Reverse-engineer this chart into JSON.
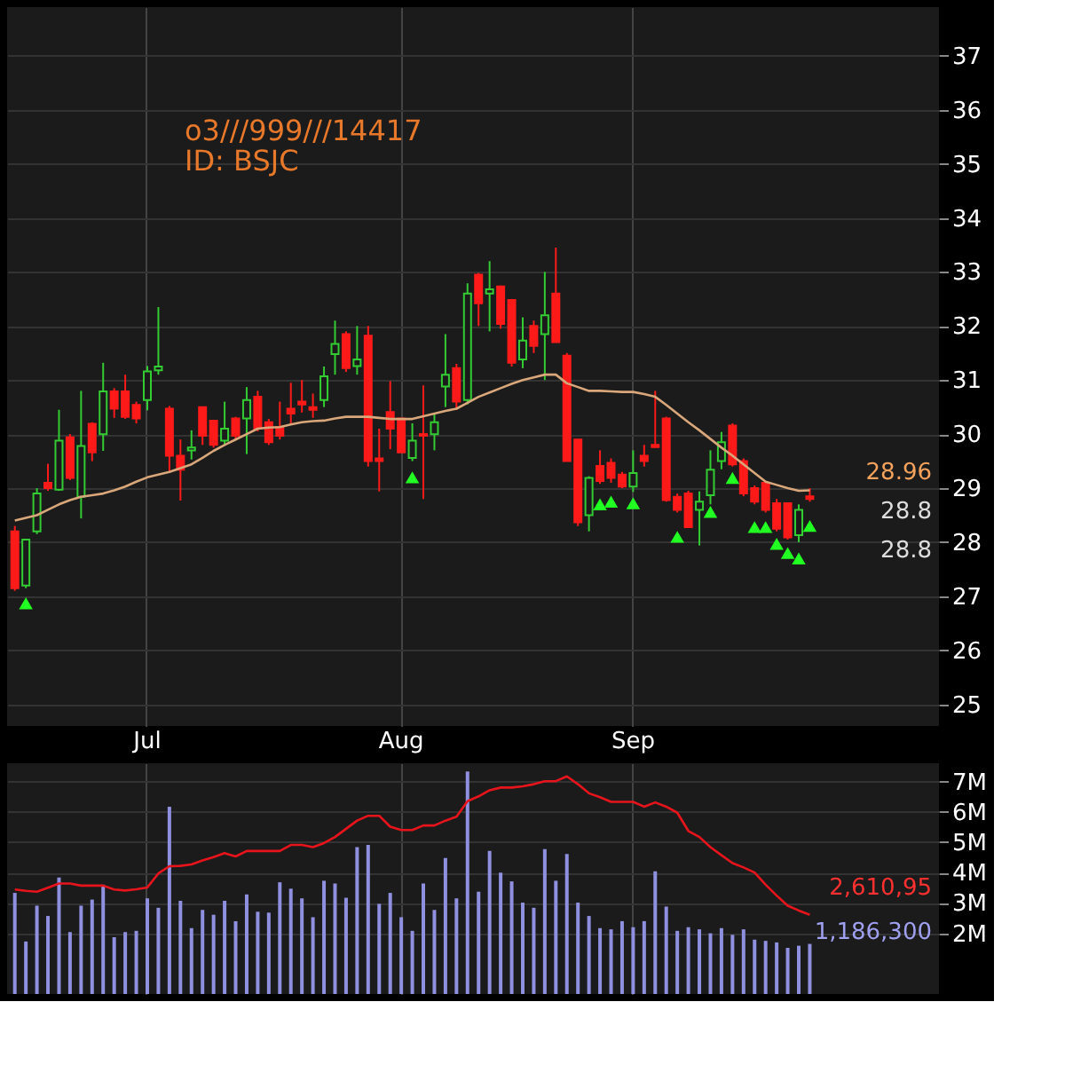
{
  "chart_data": [
    {
      "type": "candlestick",
      "title": "o3///999///14417",
      "subtitle": "ID: BSJC",
      "categories": [
        null,
        null,
        null,
        null,
        null,
        null,
        null,
        null,
        null,
        null,
        null,
        null,
        "Jul",
        null,
        null,
        null,
        null,
        null,
        null,
        null,
        null,
        null,
        null,
        null,
        null,
        null,
        null,
        null,
        null,
        null,
        null,
        null,
        null,
        null,
        null,
        "Aug",
        null,
        null,
        null,
        null,
        null,
        null,
        null,
        null,
        null,
        null,
        null,
        null,
        null,
        null,
        null,
        null,
        null,
        null,
        null,
        null,
        "Sep",
        null,
        null,
        null,
        null,
        null,
        null,
        null,
        null,
        null,
        null,
        null,
        null,
        null,
        null,
        null,
        null
      ],
      "ohlc": [
        [
          28.2,
          28.3,
          27.1,
          27.15
        ],
        [
          27.2,
          28.05,
          27.15,
          28.05
        ],
        [
          28.2,
          29.0,
          28.15,
          28.9
        ],
        [
          29.1,
          29.45,
          28.95,
          29.0
        ],
        [
          28.97,
          30.45,
          28.95,
          29.88
        ],
        [
          29.94,
          30.0,
          29.15,
          29.19
        ],
        [
          28.84,
          30.8,
          28.44,
          29.78
        ],
        [
          30.19,
          30.22,
          29.5,
          29.66
        ],
        [
          30.0,
          31.32,
          29.69,
          30.79
        ],
        [
          30.79,
          30.85,
          30.3,
          30.47
        ],
        [
          30.79,
          31.1,
          30.28,
          30.32
        ],
        [
          30.54,
          30.6,
          30.2,
          30.29
        ],
        [
          30.63,
          31.26,
          30.44,
          31.16
        ],
        [
          31.18,
          32.35,
          31.1,
          31.25
        ],
        [
          30.47,
          30.52,
          29.28,
          29.6
        ],
        [
          29.6,
          29.9,
          28.77,
          29.34
        ],
        [
          29.7,
          30.07,
          29.53,
          29.75
        ],
        [
          30.5,
          30.5,
          29.8,
          29.97
        ],
        [
          30.25,
          30.25,
          29.75,
          29.8
        ],
        [
          29.88,
          30.6,
          29.8,
          30.1
        ],
        [
          30.29,
          30.32,
          29.9,
          29.97
        ],
        [
          30.29,
          30.87,
          29.63,
          30.63
        ],
        [
          30.69,
          30.8,
          30.05,
          30.1
        ],
        [
          30.22,
          30.28,
          29.8,
          29.85
        ],
        [
          30.13,
          30.6,
          29.9,
          29.97
        ],
        [
          30.47,
          30.95,
          30.2,
          30.38
        ],
        [
          30.6,
          31.0,
          30.4,
          30.55
        ],
        [
          30.5,
          30.75,
          30.3,
          30.45
        ],
        [
          30.63,
          31.25,
          30.5,
          31.07
        ],
        [
          31.48,
          32.1,
          31.1,
          31.67
        ],
        [
          31.85,
          31.9,
          31.15,
          31.22
        ],
        [
          31.26,
          32.0,
          31.1,
          31.38
        ],
        [
          31.82,
          32.0,
          29.4,
          29.5
        ],
        [
          29.55,
          30.1,
          28.94,
          29.5
        ],
        [
          30.41,
          30.98,
          29.72,
          30.1
        ],
        [
          30.29,
          30.29,
          29.66,
          29.66
        ],
        [
          29.56,
          30.2,
          29.5,
          29.88
        ],
        [
          30.0,
          30.9,
          28.8,
          29.97
        ],
        [
          30.0,
          30.38,
          29.7,
          30.22
        ],
        [
          30.88,
          31.85,
          30.5,
          31.1
        ],
        [
          31.22,
          31.3,
          30.45,
          30.6
        ],
        [
          30.63,
          32.79,
          30.55,
          32.6
        ],
        [
          32.95,
          32.98,
          32.0,
          32.42
        ],
        [
          32.6,
          33.2,
          31.9,
          32.68
        ],
        [
          32.73,
          32.75,
          31.95,
          32.04
        ],
        [
          32.48,
          32.5,
          31.25,
          31.32
        ],
        [
          31.38,
          32.16,
          31.22,
          31.73
        ],
        [
          32.0,
          32.1,
          31.5,
          31.63
        ],
        [
          31.85,
          33.0,
          31.0,
          32.2
        ],
        [
          32.6,
          33.45,
          31.7,
          31.7
        ],
        [
          31.45,
          31.5,
          29.5,
          29.5
        ],
        [
          29.9,
          29.9,
          28.3,
          28.37
        ],
        [
          28.5,
          29.22,
          28.2,
          29.19
        ],
        [
          29.41,
          29.7,
          29.08,
          29.13
        ],
        [
          29.47,
          29.55,
          29.1,
          29.19
        ],
        [
          29.25,
          29.3,
          29.0,
          29.03
        ],
        [
          29.03,
          29.7,
          28.93,
          29.28
        ],
        [
          29.6,
          29.8,
          29.4,
          29.5
        ],
        [
          29.8,
          30.8,
          29.75,
          29.76
        ],
        [
          30.29,
          30.32,
          28.75,
          28.78
        ],
        [
          28.84,
          28.9,
          28.55,
          28.6
        ],
        [
          28.9,
          28.95,
          28.28,
          28.28
        ],
        [
          28.6,
          28.94,
          27.94,
          28.75
        ],
        [
          28.87,
          29.7,
          28.7,
          29.34
        ],
        [
          29.5,
          30.04,
          29.35,
          29.85
        ],
        [
          30.16,
          30.2,
          29.4,
          29.44
        ],
        [
          29.5,
          29.55,
          28.85,
          28.9
        ],
        [
          29.0,
          29.05,
          28.7,
          28.75
        ],
        [
          29.1,
          29.12,
          28.55,
          28.6
        ],
        [
          28.72,
          28.8,
          28.2,
          28.25
        ],
        [
          28.72,
          28.72,
          28.05,
          28.09
        ],
        [
          28.13,
          28.7,
          28.0,
          28.6
        ],
        [
          28.85,
          29.0,
          28.75,
          28.8
        ]
      ],
      "colors": [
        "#ff1a1a",
        "#33cc33",
        "#33cc33",
        "#ff1a1a",
        "#33cc33",
        "#ff1a1a",
        "#33cc33",
        "#ff1a1a",
        "#33cc33",
        "#ff1a1a",
        "#ff1a1a",
        "#ff1a1a",
        "#33cc33",
        "#33cc33",
        "#ff1a1a",
        "#ff1a1a",
        "#33cc33",
        "#ff1a1a",
        "#ff1a1a",
        "#33cc33",
        "#ff1a1a",
        "#33cc33",
        "#ff1a1a",
        "#ff1a1a",
        "#ff1a1a",
        "#ff1a1a",
        "#ff1a1a",
        "#ff1a1a",
        "#33cc33",
        "#33cc33",
        "#ff1a1a",
        "#33cc33",
        "#ff1a1a",
        "#ff1a1a",
        "#ff1a1a",
        "#ff1a1a",
        "#33cc33",
        "#ff1a1a",
        "#33cc33",
        "#33cc33",
        "#ff1a1a",
        "#33cc33",
        "#ff1a1a",
        "#33cc33",
        "#ff1a1a",
        "#ff1a1a",
        "#33cc33",
        "#ff1a1a",
        "#33cc33",
        "#ff1a1a",
        "#ff1a1a",
        "#ff1a1a",
        "#33cc33",
        "#ff1a1a",
        "#ff1a1a",
        "#ff1a1a",
        "#33cc33",
        "#ff1a1a",
        "#ff1a1a",
        "#ff1a1a",
        "#ff1a1a",
        "#ff1a1a",
        "#33cc33",
        "#33cc33",
        "#33cc33",
        "#ff1a1a",
        "#ff1a1a",
        "#ff1a1a",
        "#ff1a1a",
        "#ff1a1a",
        "#ff1a1a",
        "#33cc33",
        "#ff1a1a"
      ],
      "series": [
        {
          "type": "line",
          "color": "#d9a77a",
          "values": [
            28.4,
            28.45,
            28.5,
            28.6,
            28.7,
            28.78,
            28.84,
            28.87,
            28.9,
            28.96,
            29.03,
            29.12,
            29.2,
            29.25,
            29.3,
            29.37,
            29.44,
            29.56,
            29.69,
            29.8,
            29.9,
            30.0,
            30.1,
            30.12,
            30.13,
            30.18,
            30.22,
            30.24,
            30.25,
            30.29,
            30.32,
            30.32,
            30.32,
            30.3,
            30.28,
            30.28,
            30.28,
            30.33,
            30.38,
            30.43,
            30.47,
            30.58,
            30.69,
            30.77,
            30.85,
            30.93,
            31.0,
            31.05,
            31.1,
            31.1,
            30.94,
            30.87,
            30.8,
            30.8,
            30.79,
            30.78,
            30.78,
            30.74,
            30.69,
            30.54,
            30.38,
            30.22,
            30.07,
            29.91,
            29.75,
            29.6,
            29.44,
            29.28,
            29.12,
            29.06,
            29.0,
            28.95,
            28.96
          ]
        },
        {
          "type": "scatter",
          "marker": "triangle",
          "color": "#22ff22",
          "values": [
            null,
            26.87,
            null,
            null,
            null,
            null,
            null,
            null,
            null,
            null,
            null,
            null,
            null,
            null,
            null,
            null,
            null,
            null,
            null,
            null,
            null,
            null,
            null,
            null,
            null,
            null,
            null,
            null,
            null,
            null,
            null,
            null,
            null,
            null,
            null,
            null,
            29.2,
            null,
            null,
            null,
            null,
            null,
            null,
            null,
            null,
            null,
            null,
            null,
            null,
            null,
            null,
            null,
            null,
            28.7,
            28.75,
            null,
            28.72,
            null,
            null,
            null,
            28.1,
            null,
            null,
            28.56,
            null,
            29.19,
            null,
            28.28,
            28.28,
            27.97,
            27.8,
            27.7,
            28.3
          ]
        }
      ],
      "ylim": [
        24.6,
        37.9
      ],
      "yticks": [
        25,
        26,
        27,
        28,
        29,
        30,
        31,
        32,
        33,
        34,
        35,
        36,
        37
      ],
      "grid": true,
      "annotations": [
        "28.96",
        "28.8",
        "28.8"
      ]
    },
    {
      "type": "bar",
      "tick_labels": "y",
      "categories": [
        null,
        null,
        null,
        null,
        null,
        null,
        null,
        null,
        null,
        null,
        null,
        null,
        null,
        null,
        null,
        null,
        null,
        null,
        null,
        null,
        null,
        null,
        null,
        null,
        null,
        null,
        null,
        null,
        null,
        null,
        null,
        null,
        null,
        null,
        null,
        null,
        null,
        null,
        null,
        null,
        null,
        null,
        null,
        null,
        null,
        null,
        null,
        null,
        null,
        null,
        null,
        null,
        null,
        null,
        null,
        null,
        null,
        null,
        null,
        null,
        null,
        null,
        null,
        null,
        null,
        null,
        null,
        null,
        null,
        null,
        null,
        null,
        null
      ],
      "series": [
        {
          "type": "bar",
          "color": "#9090e0",
          "values": [
            3330000,
            1730000,
            2910000,
            2570000,
            3840000,
            2040000,
            2910000,
            3110000,
            3600000,
            1870000,
            2040000,
            2080000,
            3150000,
            2840000,
            6170000,
            3070000,
            2170000,
            2770000,
            2610000,
            3070000,
            2400000,
            3280000,
            2710000,
            2680000,
            3680000,
            3470000,
            3150000,
            2530000,
            3730000,
            3640000,
            3170000,
            4840000,
            4910000,
            2970000,
            3330000,
            2530000,
            2080000,
            3640000,
            2770000,
            4480000,
            3150000,
            7330000,
            3370000,
            4710000,
            4000000,
            3710000,
            3010000,
            2840000,
            4770000,
            3730000,
            4610000,
            3010000,
            2570000,
            2170000,
            2130000,
            2400000,
            2200000,
            2400000,
            4040000,
            2880000,
            2080000,
            2200000,
            2130000,
            2000000,
            2170000,
            1950000,
            2130000,
            1790000,
            1750000,
            1700000,
            1520000,
            1590000,
            1650000
          ]
        },
        {
          "type": "line",
          "color": "#e8141c",
          "values": [
            3440000,
            3400000,
            3370000,
            3500000,
            3640000,
            3640000,
            3570000,
            3570000,
            3570000,
            3440000,
            3410000,
            3450000,
            3510000,
            3970000,
            4210000,
            4220000,
            4270000,
            4400000,
            4510000,
            4640000,
            4530000,
            4710000,
            4710000,
            4710000,
            4710000,
            4910000,
            4910000,
            4840000,
            4970000,
            5170000,
            5440000,
            5710000,
            5870000,
            5870000,
            5510000,
            5400000,
            5400000,
            5550000,
            5550000,
            5710000,
            5840000,
            6350000,
            6510000,
            6710000,
            6800000,
            6800000,
            6840000,
            6910000,
            7010000,
            7010000,
            7170000,
            6910000,
            6610000,
            6480000,
            6330000,
            6330000,
            6330000,
            6170000,
            6310000,
            6170000,
            5970000,
            5370000,
            5170000,
            4840000,
            4570000,
            4310000,
            4170000,
            4000000,
            3600000,
            3240000,
            2910000,
            2750000,
            2610000
          ]
        }
      ],
      "ylim": [
        0,
        7600000
      ],
      "yticks": [
        {
          "value": 2000000,
          "label": "2M"
        },
        {
          "value": 3000000,
          "label": "3M"
        },
        {
          "value": 4000000,
          "label": "4M"
        },
        {
          "value": 5000000,
          "label": "5M"
        },
        {
          "value": 6000000,
          "label": "6M"
        },
        {
          "value": 7000000,
          "label": "7M"
        }
      ],
      "grid": true,
      "annotations": [
        "2,610,95",
        "1,186,300"
      ]
    }
  ]
}
